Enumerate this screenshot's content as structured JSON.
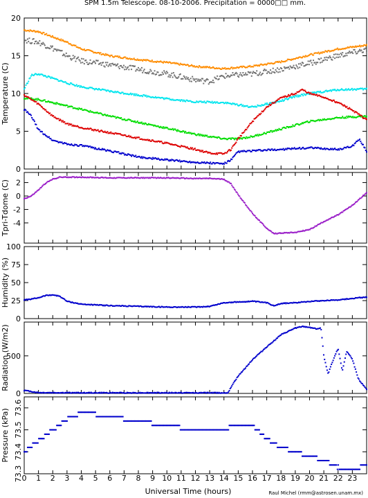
{
  "title": "SPM 1.5m Telescope. 08-10-2006. Precipitation = 0000□□ mm.",
  "xlabel": "Universal Time (hours)",
  "credit": "Raul Michel (rmm@astrosen.unam.mx)",
  "x_ticks": [
    "0",
    "1",
    "2",
    "3",
    "4",
    "5",
    "6",
    "7",
    "8",
    "9",
    "10",
    "11",
    "12",
    "13",
    "14",
    "15",
    "16",
    "17",
    "18",
    "19",
    "20",
    "21",
    "22",
    "23"
  ],
  "chart_data": [
    {
      "type": "scatter",
      "ylabel": "Temperature (C)",
      "ylim": [
        0,
        20
      ],
      "xlim": [
        0,
        24
      ],
      "yticks": [
        "0",
        "5",
        "10",
        "15",
        "20"
      ],
      "series": [
        {
          "color": "#ff8c00",
          "x": [
            0,
            1,
            2,
            3,
            4,
            6,
            8,
            10,
            12,
            14,
            16,
            18,
            20,
            22,
            24
          ],
          "y": [
            18.4,
            18.2,
            17.5,
            16.8,
            15.9,
            15.0,
            14.5,
            14.1,
            13.6,
            13.3,
            13.6,
            14.2,
            15.1,
            15.9,
            16.4
          ]
        },
        {
          "color": "#707070",
          "x": [
            0,
            1,
            2,
            3,
            4,
            6,
            8,
            10,
            12,
            13,
            14,
            16,
            18,
            20,
            22,
            24
          ],
          "y": [
            17.1,
            16.8,
            16.0,
            15.0,
            14.3,
            13.8,
            13.2,
            12.6,
            11.8,
            11.6,
            12.3,
            12.6,
            13.2,
            14.0,
            15.0,
            15.8
          ]
        },
        {
          "color": "#00e5ee",
          "x": [
            0,
            0.5,
            1,
            2,
            3,
            4,
            6,
            8,
            10,
            12,
            14,
            16,
            17,
            18,
            19,
            20,
            22,
            24
          ],
          "y": [
            10.6,
            12.4,
            12.6,
            12.0,
            11.4,
            10.9,
            10.3,
            9.8,
            9.3,
            8.9,
            8.8,
            8.2,
            8.6,
            9.0,
            9.6,
            10.0,
            10.5,
            10.6
          ]
        },
        {
          "color": "#00dd00",
          "x": [
            0,
            1,
            2,
            4,
            6,
            8,
            10,
            12,
            14,
            15,
            16,
            18,
            20,
            22,
            24
          ],
          "y": [
            9.4,
            9.2,
            8.8,
            7.9,
            7.0,
            6.2,
            5.4,
            4.6,
            4.0,
            4.0,
            4.3,
            5.3,
            6.3,
            6.8,
            7.0
          ]
        },
        {
          "color": "#dd0000",
          "x": [
            0,
            1,
            2,
            3,
            4,
            6,
            8,
            10,
            12,
            13,
            14,
            14.5,
            15,
            16,
            17,
            18,
            19,
            19.5,
            20,
            21,
            22,
            23,
            24
          ],
          "y": [
            9.8,
            8.6,
            7.0,
            6.0,
            5.5,
            4.8,
            4.1,
            3.4,
            2.6,
            2.1,
            2.0,
            2.6,
            4.0,
            6.3,
            8.2,
            9.4,
            10.0,
            10.5,
            10.0,
            9.5,
            8.8,
            7.8,
            6.5
          ]
        },
        {
          "color": "#0000cc",
          "x": [
            0,
            0.5,
            1,
            2,
            3,
            4,
            6,
            8,
            10,
            12,
            14,
            14.5,
            15,
            16,
            17,
            18,
            20,
            22,
            23,
            23.5,
            24
          ],
          "y": [
            7.9,
            7.0,
            5.2,
            3.8,
            3.3,
            3.1,
            2.4,
            1.6,
            1.2,
            0.9,
            0.7,
            1.2,
            2.3,
            2.4,
            2.5,
            2.6,
            2.8,
            2.6,
            3.0,
            4.0,
            2.3
          ]
        }
      ]
    },
    {
      "type": "scatter",
      "ylabel": "Tpri-Tdome (C)",
      "ylim": [
        -7,
        3.5
      ],
      "xlim": [
        0,
        24
      ],
      "yticks": [
        "-4",
        "-2",
        "0",
        "2"
      ],
      "series": [
        {
          "color": "#9a1ec8",
          "x": [
            0,
            0.5,
            1,
            1.5,
            2,
            2.5,
            3,
            4,
            6,
            8,
            10,
            12,
            13,
            14,
            14.5,
            15,
            16,
            17,
            17.5,
            18,
            19,
            20,
            21,
            22,
            23,
            24
          ],
          "y": [
            -0.4,
            0.0,
            0.9,
            1.9,
            2.5,
            2.8,
            2.8,
            2.8,
            2.7,
            2.7,
            2.7,
            2.6,
            2.6,
            2.5,
            1.8,
            0.2,
            -2.6,
            -4.8,
            -5.6,
            -5.5,
            -5.4,
            -5.0,
            -3.8,
            -2.8,
            -1.4,
            0.5
          ]
        }
      ]
    },
    {
      "type": "scatter",
      "ylabel": "Humidity (%)",
      "ylim": [
        0,
        100
      ],
      "xlim": [
        0,
        24
      ],
      "yticks": [
        "0",
        "25",
        "50",
        "75",
        "100"
      ],
      "series": [
        {
          "color": "#0000cc",
          "x": [
            0,
            0.5,
            1,
            1.5,
            2,
            2.5,
            3,
            4,
            6,
            8,
            10,
            12,
            13,
            14,
            16,
            17,
            17.5,
            18,
            19,
            20,
            22,
            24
          ],
          "y": [
            26,
            27,
            29,
            32,
            33,
            31,
            24,
            20,
            18,
            17,
            16,
            16,
            17,
            22,
            24,
            22,
            18,
            21,
            22,
            24,
            26,
            30
          ]
        }
      ]
    },
    {
      "type": "scatter",
      "ylabel": "Radiation (W/m2)",
      "ylim": [
        0,
        950
      ],
      "xlim": [
        0,
        24
      ],
      "yticks": [
        "0",
        "500"
      ],
      "series": [
        {
          "color": "#0000cc",
          "x": [
            0,
            1,
            4,
            8,
            12,
            14.3,
            14.6,
            15,
            16,
            17,
            18,
            19,
            19.5,
            20,
            20.5,
            20.8,
            21,
            21.3,
            21.6,
            22,
            22.3,
            22.6,
            23,
            23.4,
            24
          ],
          "y": [
            40,
            10,
            8,
            8,
            8,
            8,
            120,
            230,
            450,
            620,
            780,
            870,
            890,
            880,
            860,
            870,
            500,
            260,
            420,
            600,
            300,
            560,
            460,
            200,
            50
          ]
        }
      ]
    },
    {
      "type": "scatter",
      "ylabel": "Pressure (kPa)",
      "ylim": [
        73.3,
        73.65
      ],
      "xlim": [
        0,
        24
      ],
      "yticks": [
        "73.3",
        "73.4",
        "73.5",
        "73.6"
      ],
      "series": [
        {
          "color": "#0000cc",
          "x": [
            0,
            1,
            2,
            3,
            4,
            6,
            8,
            10,
            12,
            14,
            15,
            16,
            17,
            18,
            19,
            20,
            21,
            22,
            23,
            24
          ],
          "y": [
            73.4,
            73.45,
            73.5,
            73.55,
            73.58,
            73.56,
            73.54,
            73.52,
            73.5,
            73.5,
            73.53,
            73.52,
            73.46,
            73.42,
            73.4,
            73.38,
            73.36,
            73.33,
            73.32,
            73.34
          ]
        }
      ]
    }
  ]
}
